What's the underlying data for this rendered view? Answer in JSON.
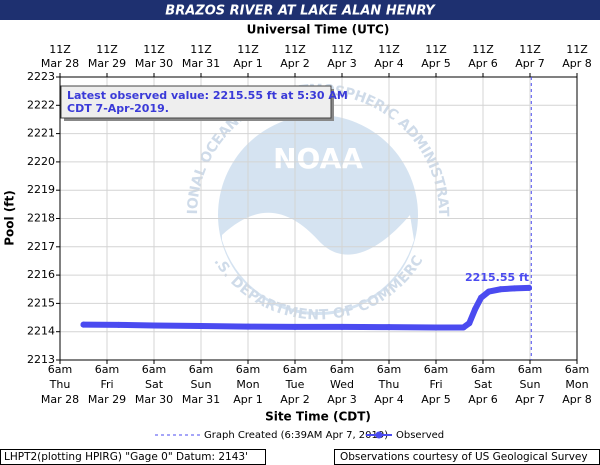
{
  "chart_data": {
    "type": "line",
    "title": "BRAZOS RIVER AT LAKE ALAN HENRY",
    "x2_label": "Universal Time (UTC)",
    "x_label": "Site Time (CDT)",
    "y_label": "Pool (ft)",
    "xlim": [
      "2019-03-28T06:00-05:00",
      "2019-04-08T06:00-05:00"
    ],
    "ylim": [
      2213,
      2223
    ],
    "yticks": [
      2213,
      2214,
      2215,
      2216,
      2217,
      2218,
      2219,
      2220,
      2221,
      2222,
      2223
    ],
    "grid": true,
    "xticks": [
      {
        "value": "2019-03-28T06:00-05:00",
        "label": [
          "6am",
          "Thu",
          "Mar 28"
        ]
      },
      {
        "value": "2019-03-29T06:00-05:00",
        "label": [
          "6am",
          "Fri",
          "Mar 29"
        ]
      },
      {
        "value": "2019-03-30T06:00-05:00",
        "label": [
          "6am",
          "Sat",
          "Mar 30"
        ]
      },
      {
        "value": "2019-03-31T06:00-05:00",
        "label": [
          "6am",
          "Sun",
          "Mar 31"
        ]
      },
      {
        "value": "2019-04-01T06:00-05:00",
        "label": [
          "6am",
          "Mon",
          "Apr 1"
        ]
      },
      {
        "value": "2019-04-02T06:00-05:00",
        "label": [
          "6am",
          "Tue",
          "Apr 2"
        ]
      },
      {
        "value": "2019-04-03T06:00-05:00",
        "label": [
          "6am",
          "Wed",
          "Apr 3"
        ]
      },
      {
        "value": "2019-04-04T06:00-05:00",
        "label": [
          "6am",
          "Thu",
          "Apr 4"
        ]
      },
      {
        "value": "2019-04-05T06:00-05:00",
        "label": [
          "6am",
          "Fri",
          "Apr 5"
        ]
      },
      {
        "value": "2019-04-06T06:00-05:00",
        "label": [
          "6am",
          "Sat",
          "Apr 6"
        ]
      },
      {
        "value": "2019-04-07T06:00-05:00",
        "label": [
          "6am",
          "Sun",
          "Apr 7"
        ]
      },
      {
        "value": "2019-04-08T06:00-05:00",
        "label": [
          "6am",
          "Mon",
          "Apr 8"
        ]
      }
    ],
    "x2ticks": [
      {
        "value": "2019-03-28T11:00Z",
        "label": [
          "11Z",
          "Mar 28"
        ]
      },
      {
        "value": "2019-03-29T11:00Z",
        "label": [
          "11Z",
          "Mar 29"
        ]
      },
      {
        "value": "2019-03-30T11:00Z",
        "label": [
          "11Z",
          "Mar 30"
        ]
      },
      {
        "value": "2019-03-31T11:00Z",
        "label": [
          "11Z",
          "Mar 31"
        ]
      },
      {
        "value": "2019-04-01T11:00Z",
        "label": [
          "11Z",
          "Apr 1"
        ]
      },
      {
        "value": "2019-04-02T11:00Z",
        "label": [
          "11Z",
          "Apr 2"
        ]
      },
      {
        "value": "2019-04-03T11:00Z",
        "label": [
          "11Z",
          "Apr 3"
        ]
      },
      {
        "value": "2019-04-04T11:00Z",
        "label": [
          "11Z",
          "Apr 4"
        ]
      },
      {
        "value": "2019-04-05T11:00Z",
        "label": [
          "11Z",
          "Apr 5"
        ]
      },
      {
        "value": "2019-04-06T11:00Z",
        "label": [
          "11Z",
          "Apr 6"
        ]
      },
      {
        "value": "2019-04-07T11:00Z",
        "label": [
          "11Z",
          "Apr 7"
        ]
      },
      {
        "value": "2019-04-08T11:00Z",
        "label": [
          "11Z",
          "Apr 8"
        ]
      }
    ],
    "series": [
      {
        "name": "Observed",
        "color": "#4b4bf0",
        "x": [
          "2019-03-28T18:00-05:00",
          "2019-03-29T12:00-05:00",
          "2019-03-30T06:00-05:00",
          "2019-03-31T06:00-05:00",
          "2019-04-01T06:00-05:00",
          "2019-04-02T06:00-05:00",
          "2019-04-03T06:00-05:00",
          "2019-04-04T06:00-05:00",
          "2019-04-05T06:00-05:00",
          "2019-04-05T20:00-05:00",
          "2019-04-05T23:00-05:00",
          "2019-04-06T02:00-05:00",
          "2019-04-06T05:00-05:00",
          "2019-04-06T09:00-05:00",
          "2019-04-06T15:00-05:00",
          "2019-04-06T22:00-05:00",
          "2019-04-07T05:30-05:00"
        ],
        "values": [
          2214.25,
          2214.24,
          2214.22,
          2214.2,
          2214.18,
          2214.17,
          2214.17,
          2214.16,
          2214.15,
          2214.15,
          2214.3,
          2214.8,
          2215.2,
          2215.42,
          2215.5,
          2215.53,
          2215.55
        ],
        "value_labels": [
          null,
          null,
          null,
          null,
          null,
          null,
          null,
          null,
          null,
          null,
          null,
          null,
          null,
          null,
          null,
          null,
          "2215.55 ft"
        ]
      }
    ],
    "vline": {
      "value": "2019-04-07T06:39-05:00",
      "label": "Graph Created (6:39AM Apr 7, 2019)"
    },
    "annotation": [
      "Latest observed value: 2215.55 ft at 5:30 AM",
      "CDT 7-Apr-2019."
    ],
    "watermark": {
      "logo": "NOAA",
      "ring_top": "NATIONAL OCEANIC AND ATMOSPHERIC ADMINISTRATION",
      "ring_bottom": "U.S. DEPARTMENT OF COMMERCE"
    },
    "footer_left": "LHPT2(plotting HPIRG) \"Gage 0\" Datum: 2143'",
    "footer_right": "Observations courtesy of US Geological Survey"
  }
}
